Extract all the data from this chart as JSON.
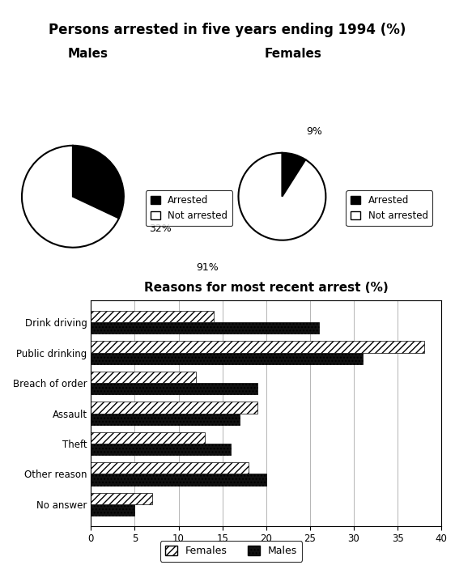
{
  "pie_title": "Persons arrested in five years ending 1994 (%)",
  "males_label": "Males",
  "females_label": "Females",
  "pie_legend": [
    "Arrested",
    "Not arrested"
  ],
  "pie_colors": [
    "#000000",
    "#ffffff"
  ],
  "males_arrested": 32,
  "males_not_arrested": 68,
  "females_arrested": 9,
  "females_not_arrested": 91,
  "bar_title": "Reasons for most recent arrest (%)",
  "categories": [
    "Drink driving",
    "Public drinking",
    "Breach of order",
    "Assault",
    "Theft",
    "Other reason",
    "No answer"
  ],
  "males_values": [
    26,
    31,
    19,
    17,
    16,
    20,
    5
  ],
  "females_values": [
    14,
    38,
    12,
    19,
    13,
    18,
    7
  ],
  "bar_xlim": [
    0,
    40
  ],
  "bar_xticks": [
    0,
    5,
    10,
    15,
    20,
    25,
    30,
    35,
    40
  ]
}
